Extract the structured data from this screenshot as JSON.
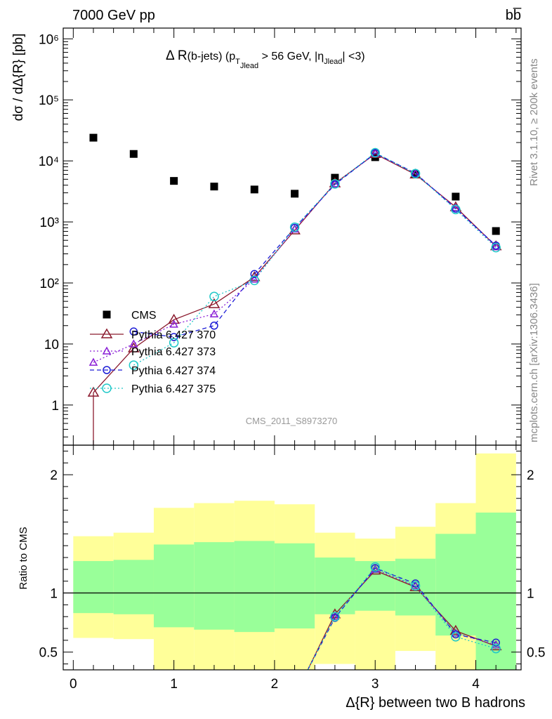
{
  "header": {
    "energy_label": "7000 GeV pp",
    "process_label": "bb̅"
  },
  "side": {
    "rivet_label": "Rivet 3.1.10, ≥ 200k events",
    "mcplots_label": "mcplots.cern.ch [arXiv:1306.3436]"
  },
  "chart_data": [
    {
      "type": "scatter",
      "title": "Δ R(b-jets) (pT_Jlead > 56 GeV, |η_Jlead| <3)",
      "title_parts": {
        "main": "Δ R",
        "paren": "(b-jets) (p",
        "T": "T",
        "sub1": "Jlead",
        "mid": " >  56 GeV, |",
        "eta": "η",
        "sub2": "Jlead",
        "end": "| <3)"
      },
      "watermark": "CMS_2011_S8973270",
      "ylabel": "dσ / dΔ{R} [pb]",
      "yscale": "log",
      "ylim": [
        0.22,
        1500000
      ],
      "xlim": [
        -0.1,
        4.45
      ],
      "ytick_labels": [
        "1",
        "10",
        "10²",
        "10³",
        "10⁴",
        "10⁵",
        "10⁶"
      ],
      "grid": false,
      "legend_position": "center-left",
      "x": [
        0.2,
        0.6,
        1.0,
        1.4,
        1.8,
        2.2,
        2.6,
        3.0,
        3.4,
        3.8,
        4.2
      ],
      "series": [
        {
          "name": "CMS",
          "color": "#000000",
          "marker": "square",
          "values": [
            24000,
            13000,
            4700,
            3800,
            3400,
            2900,
            5300,
            11500,
            6000,
            2600,
            710
          ]
        },
        {
          "name": "Pythia 6.427 370",
          "color": "#8b1a2e",
          "marker": "triangle",
          "line": "solid",
          "values": [
            1.6,
            8.5,
            25,
            45,
            125,
            730,
            4300,
            13000,
            6000,
            1750,
            400
          ]
        },
        {
          "name": "Pythia 6.427 373",
          "color": "#8a1fd6",
          "marker": "triangle-small",
          "line": "dotted",
          "values": [
            5,
            10,
            21,
            31,
            115,
            760,
            4200,
            13200,
            6200,
            1700,
            390
          ]
        },
        {
          "name": "Pythia 6.427 374",
          "color": "#1c1cd6",
          "marker": "circle",
          "line": "dashed",
          "values": [
            null,
            16,
            13,
            20,
            140,
            800,
            4100,
            13400,
            6300,
            1650,
            410
          ]
        },
        {
          "name": "Pythia 6.427 375",
          "color": "#20c8c8",
          "marker": "circle-large",
          "line": "dotted",
          "values": [
            null,
            4.5,
            10.5,
            60,
            110,
            820,
            4200,
            13600,
            6200,
            1600,
            380
          ]
        }
      ]
    },
    {
      "type": "line",
      "ylabel": "Ratio to CMS",
      "xlabel": "Δ{R} between two B hadrons",
      "ylim": [
        0.35,
        2.25
      ],
      "xlim": [
        -0.1,
        4.45
      ],
      "xtick_labels": [
        "0",
        "1",
        "2",
        "3",
        "4"
      ],
      "ytick_labels": [
        "0.5",
        "1",
        "2"
      ],
      "reference": 1,
      "bands": {
        "edges": [
          0.0,
          0.4,
          0.8,
          1.2,
          1.6,
          2.0,
          2.4,
          2.8,
          3.2,
          3.6,
          4.0,
          4.4
        ],
        "green_low": [
          0.83,
          0.82,
          0.71,
          0.69,
          0.67,
          0.7,
          0.82,
          0.85,
          0.81,
          0.64,
          0.0
        ],
        "green_high": [
          1.27,
          1.28,
          1.41,
          1.43,
          1.44,
          1.42,
          1.3,
          1.27,
          1.29,
          1.5,
          1.68
        ],
        "yellow_low": [
          0.62,
          0.61,
          0.0,
          0.0,
          0.0,
          0.0,
          0.4,
          0.0,
          0.51,
          0.0,
          0.0
        ],
        "yellow_high": [
          1.48,
          1.51,
          1.72,
          1.76,
          1.78,
          1.75,
          1.51,
          1.46,
          1.56,
          1.76,
          2.18
        ]
      },
      "x": [
        2.6,
        3.0,
        3.4,
        3.8,
        4.2
      ],
      "series": [
        {
          "name": "Pythia 6.427 370",
          "color": "#8b1a2e",
          "values": [
            0.82,
            1.19,
            1.05,
            0.68,
            0.55
          ]
        },
        {
          "name": "Pythia 6.427 373",
          "color": "#8a1fd6",
          "values": [
            0.8,
            1.2,
            1.06,
            0.66,
            0.56
          ]
        },
        {
          "name": "Pythia 6.427 374",
          "color": "#1c1cd6",
          "values": [
            0.79,
            1.21,
            1.08,
            0.65,
            0.58
          ]
        },
        {
          "name": "Pythia 6.427 375",
          "color": "#20c8c8",
          "values": [
            0.8,
            1.22,
            1.06,
            0.63,
            0.53
          ]
        }
      ]
    }
  ]
}
